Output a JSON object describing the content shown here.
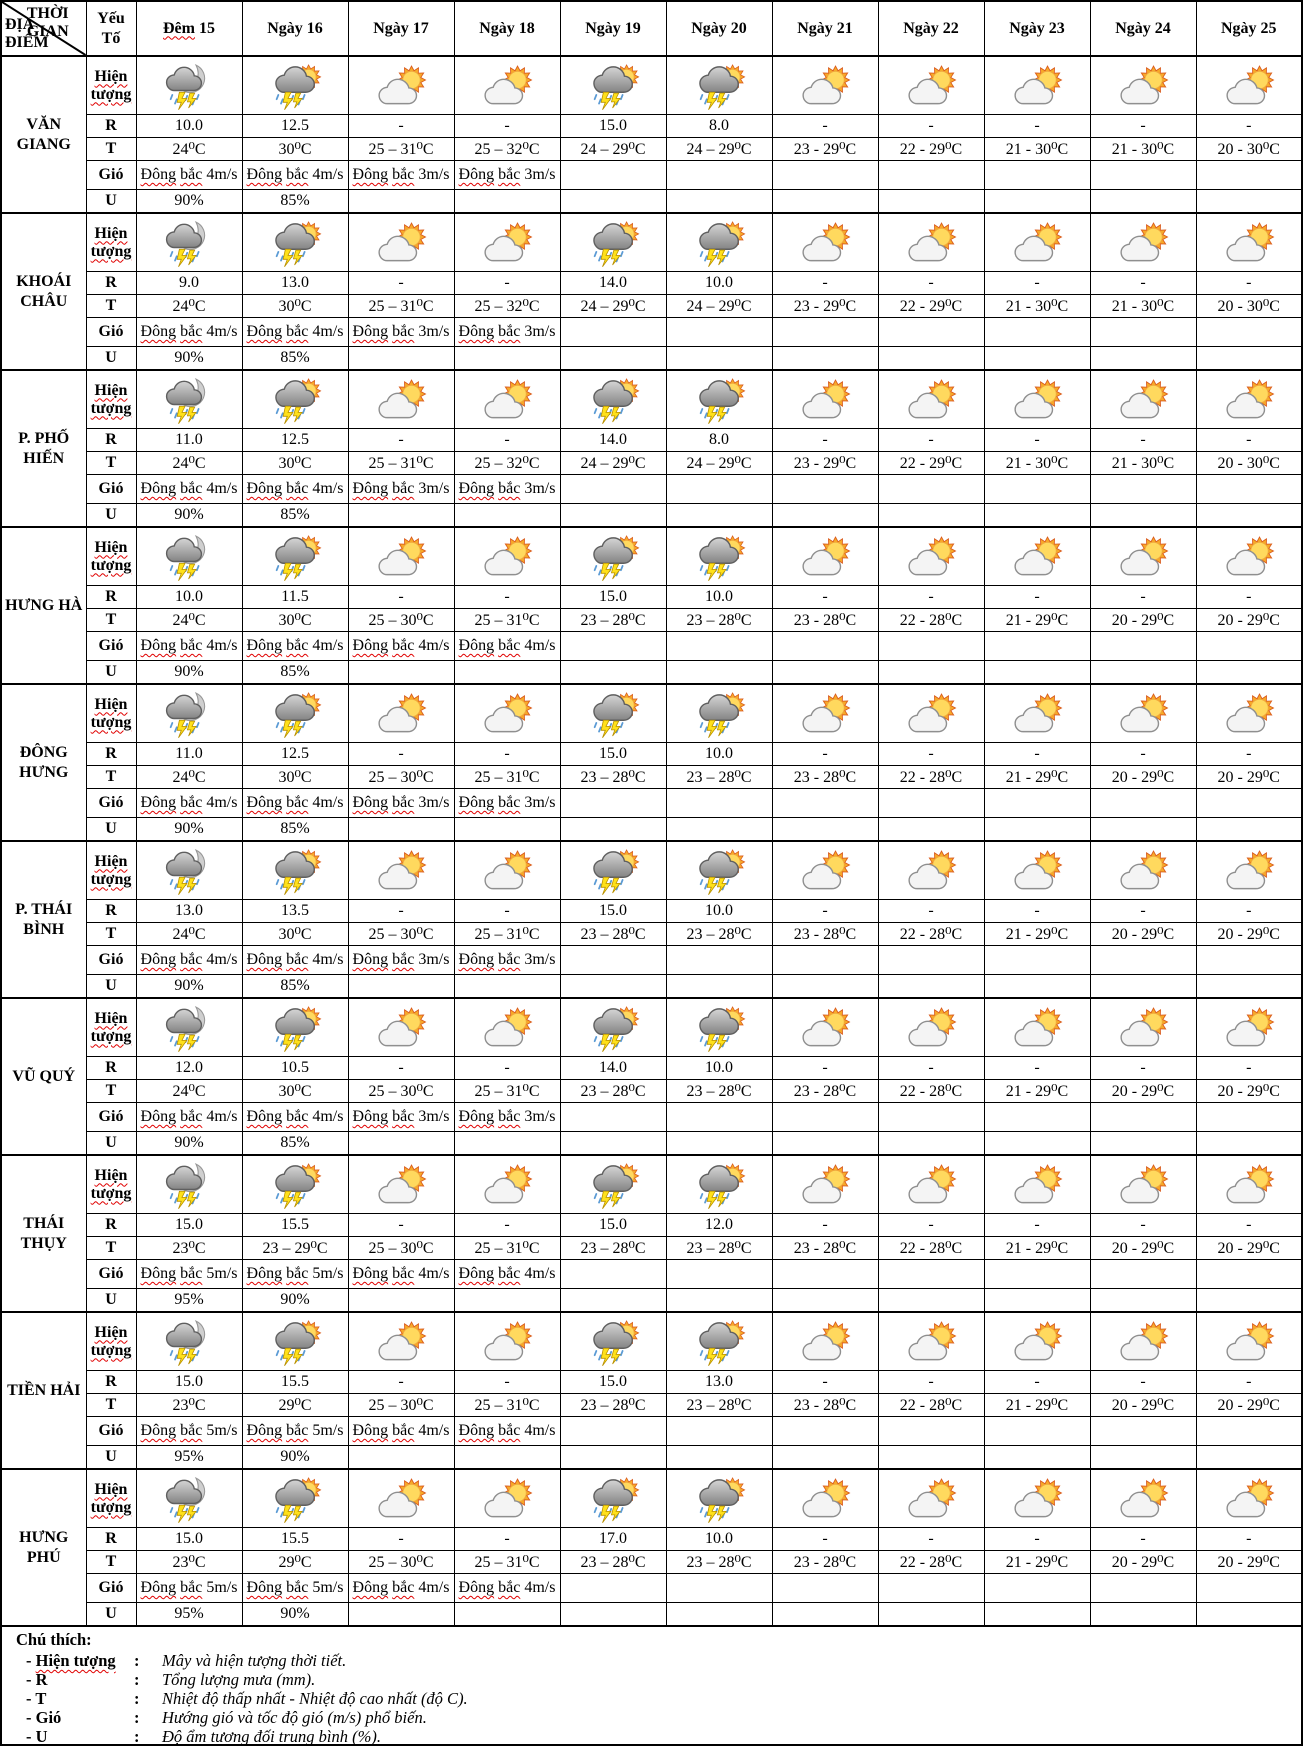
{
  "corner": {
    "top_label": "THỜI GIAN",
    "bottom_label": "ĐỊA ĐIỂM"
  },
  "factor_header": "Yếu Tố",
  "columns": [
    "Đêm 15",
    "Ngày 16",
    "Ngày 17",
    "Ngày 18",
    "Ngày 19",
    "Ngày 20",
    "Ngày 21",
    "Ngày 22",
    "Ngày 23",
    "Ngày 24",
    "Ngày 25"
  ],
  "row_labels": {
    "phenomenon": "Hiện tượng",
    "rain": "R",
    "temp": "T",
    "wind": "Gió",
    "humidity": "U"
  },
  "icons_by_column": [
    "night-storm",
    "day-storm",
    "partly-cloudy",
    "partly-cloudy",
    "day-storm",
    "day-storm",
    "partly-cloudy",
    "partly-cloudy",
    "partly-cloudy",
    "partly-cloudy",
    "partly-cloudy"
  ],
  "locations": [
    {
      "name": "VĂN GIANG",
      "rain": [
        "10.0",
        "12.5",
        "-",
        "-",
        "15.0",
        "8.0",
        "-",
        "-",
        "-",
        "-",
        "-"
      ],
      "temp": [
        "24⁰C",
        "30⁰C",
        "25 – 31⁰C",
        "25 – 32⁰C",
        "24 – 29⁰C",
        "24 – 29⁰C",
        "23 - 29⁰C",
        "22 - 29⁰C",
        "21 - 30⁰C",
        "21 - 30⁰C",
        "20 - 30⁰C"
      ],
      "wind": [
        "Đông bắc 4m/s",
        "Đông bắc 4m/s",
        "Đông bắc 3m/s",
        "Đông bắc 3m/s",
        "",
        "",
        "",
        "",
        "",
        "",
        ""
      ],
      "humidity": [
        "90%",
        "85%",
        "",
        "",
        "",
        "",
        "",
        "",
        "",
        "",
        ""
      ]
    },
    {
      "name": "KHOÁI CHÂU",
      "rain": [
        "9.0",
        "13.0",
        "-",
        "-",
        "14.0",
        "10.0",
        "-",
        "-",
        "-",
        "-",
        "-"
      ],
      "temp": [
        "24⁰C",
        "30⁰C",
        "25 – 31⁰C",
        "25 – 32⁰C",
        "24 – 29⁰C",
        "24 – 29⁰C",
        "23 - 29⁰C",
        "22 - 29⁰C",
        "21 - 30⁰C",
        "21 - 30⁰C",
        "20 - 30⁰C"
      ],
      "wind": [
        "Đông bắc 4m/s",
        "Đông bắc 4m/s",
        "Đông bắc 3m/s",
        "Đông bắc 3m/s",
        "",
        "",
        "",
        "",
        "",
        "",
        ""
      ],
      "humidity": [
        "90%",
        "85%",
        "",
        "",
        "",
        "",
        "",
        "",
        "",
        "",
        ""
      ]
    },
    {
      "name": "P. PHỐ HIẾN",
      "rain": [
        "11.0",
        "12.5",
        "-",
        "-",
        "14.0",
        "8.0",
        "-",
        "-",
        "-",
        "-",
        "-"
      ],
      "temp": [
        "24⁰C",
        "30⁰C",
        "25 – 31⁰C",
        "25 – 32⁰C",
        "24 – 29⁰C",
        "24 – 29⁰C",
        "23 - 29⁰C",
        "22 - 29⁰C",
        "21 - 30⁰C",
        "21 - 30⁰C",
        "20 - 30⁰C"
      ],
      "wind": [
        "Đông bắc 4m/s",
        "Đông bắc 4m/s",
        "Đông bắc 3m/s",
        "Đông bắc 3m/s",
        "",
        "",
        "",
        "",
        "",
        "",
        ""
      ],
      "humidity": [
        "90%",
        "85%",
        "",
        "",
        "",
        "",
        "",
        "",
        "",
        "",
        ""
      ]
    },
    {
      "name": "HƯNG HÀ",
      "rain": [
        "10.0",
        "11.5",
        "-",
        "-",
        "15.0",
        "10.0",
        "-",
        "-",
        "-",
        "-",
        "-"
      ],
      "temp": [
        "24⁰C",
        "30⁰C",
        "25 – 30⁰C",
        "25 – 31⁰C",
        "23 – 28⁰C",
        "23 – 28⁰C",
        "23 - 28⁰C",
        "22 - 28⁰C",
        "21 - 29⁰C",
        "20 - 29⁰C",
        "20 - 29⁰C"
      ],
      "wind": [
        "Đông bắc 4m/s",
        "Đông bắc 4m/s",
        "Đông bắc 4m/s",
        "Đông bắc 4m/s",
        "",
        "",
        "",
        "",
        "",
        "",
        ""
      ],
      "humidity": [
        "90%",
        "85%",
        "",
        "",
        "",
        "",
        "",
        "",
        "",
        "",
        ""
      ]
    },
    {
      "name": "ĐÔNG HƯNG",
      "rain": [
        "11.0",
        "12.5",
        "-",
        "-",
        "15.0",
        "10.0",
        "-",
        "-",
        "-",
        "-",
        "-"
      ],
      "temp": [
        "24⁰C",
        "30⁰C",
        "25 – 30⁰C",
        "25 – 31⁰C",
        "23 – 28⁰C",
        "23 – 28⁰C",
        "23 - 28⁰C",
        "22 - 28⁰C",
        "21 - 29⁰C",
        "20 - 29⁰C",
        "20 - 29⁰C"
      ],
      "wind": [
        "Đông bắc 4m/s",
        "Đông bắc 4m/s",
        "Đông bắc 3m/s",
        "Đông bắc 3m/s",
        "",
        "",
        "",
        "",
        "",
        "",
        ""
      ],
      "humidity": [
        "90%",
        "85%",
        "",
        "",
        "",
        "",
        "",
        "",
        "",
        "",
        ""
      ]
    },
    {
      "name": "P. THÁI BÌNH",
      "rain": [
        "13.0",
        "13.5",
        "-",
        "-",
        "15.0",
        "10.0",
        "-",
        "-",
        "-",
        "-",
        "-"
      ],
      "temp": [
        "24⁰C",
        "30⁰C",
        "25 – 30⁰C",
        "25 – 31⁰C",
        "23 – 28⁰C",
        "23 – 28⁰C",
        "23 - 28⁰C",
        "22 - 28⁰C",
        "21 - 29⁰C",
        "20 - 29⁰C",
        "20 - 29⁰C"
      ],
      "wind": [
        "Đông bắc 4m/s",
        "Đông bắc 4m/s",
        "Đông bắc 3m/s",
        "Đông bắc 3m/s",
        "",
        "",
        "",
        "",
        "",
        "",
        ""
      ],
      "humidity": [
        "90%",
        "85%",
        "",
        "",
        "",
        "",
        "",
        "",
        "",
        "",
        ""
      ]
    },
    {
      "name": "VŨ QUÝ",
      "rain": [
        "12.0",
        "10.5",
        "-",
        "-",
        "14.0",
        "10.0",
        "-",
        "-",
        "-",
        "-",
        "-"
      ],
      "temp": [
        "24⁰C",
        "30⁰C",
        "25 – 30⁰C",
        "25 – 31⁰C",
        "23 – 28⁰C",
        "23 – 28⁰C",
        "23 - 28⁰C",
        "22 - 28⁰C",
        "21 - 29⁰C",
        "20 - 29⁰C",
        "20 - 29⁰C"
      ],
      "wind": [
        "Đông bắc 4m/s",
        "Đông bắc 4m/s",
        "Đông bắc 3m/s",
        "Đông bắc 3m/s",
        "",
        "",
        "",
        "",
        "",
        "",
        ""
      ],
      "humidity": [
        "90%",
        "85%",
        "",
        "",
        "",
        "",
        "",
        "",
        "",
        "",
        ""
      ]
    },
    {
      "name": "THÁI THỤY",
      "rain": [
        "15.0",
        "15.5",
        "-",
        "-",
        "15.0",
        "12.0",
        "-",
        "-",
        "-",
        "-",
        "-"
      ],
      "temp": [
        "23⁰C",
        "23 – 29⁰C",
        "25 – 30⁰C",
        "25 – 31⁰C",
        "23 – 28⁰C",
        "23 – 28⁰C",
        "23 - 28⁰C",
        "22 - 28⁰C",
        "21 - 29⁰C",
        "20 - 29⁰C",
        "20 - 29⁰C"
      ],
      "wind": [
        "Đông bắc 5m/s",
        "Đông bắc 5m/s",
        "Đông bắc 4m/s",
        "Đông bắc 4m/s",
        "",
        "",
        "",
        "",
        "",
        "",
        ""
      ],
      "humidity": [
        "95%",
        "90%",
        "",
        "",
        "",
        "",
        "",
        "",
        "",
        "",
        ""
      ]
    },
    {
      "name": "TIỀN HẢI",
      "rain": [
        "15.0",
        "15.5",
        "-",
        "-",
        "15.0",
        "13.0",
        "-",
        "-",
        "-",
        "-",
        "-"
      ],
      "temp": [
        "23⁰C",
        "29⁰C",
        "25 – 30⁰C",
        "25 – 31⁰C",
        "23 – 28⁰C",
        "23 – 28⁰C",
        "23 - 28⁰C",
        "22 - 28⁰C",
        "21 - 29⁰C",
        "20 - 29⁰C",
        "20 - 29⁰C"
      ],
      "wind": [
        "Đông bắc 5m/s",
        "Đông bắc 5m/s",
        "Đông bắc 4m/s",
        "Đông bắc 4m/s",
        "",
        "",
        "",
        "",
        "",
        "",
        ""
      ],
      "humidity": [
        "95%",
        "90%",
        "",
        "",
        "",
        "",
        "",
        "",
        "",
        "",
        ""
      ]
    },
    {
      "name": "HƯNG PHÚ",
      "rain": [
        "15.0",
        "15.5",
        "-",
        "-",
        "17.0",
        "10.0",
        "-",
        "-",
        "-",
        "-",
        "-"
      ],
      "temp": [
        "23⁰C",
        "29⁰C",
        "25 – 30⁰C",
        "25 – 31⁰C",
        "23 – 28⁰C",
        "23 – 28⁰C",
        "23 - 28⁰C",
        "22 - 28⁰C",
        "21 - 29⁰C",
        "20 - 29⁰C",
        "20 - 29⁰C"
      ],
      "wind": [
        "Đông bắc 5m/s",
        "Đông bắc 5m/s",
        "Đông bắc 4m/s",
        "Đông bắc 4m/s",
        "",
        "",
        "",
        "",
        "",
        "",
        ""
      ],
      "humidity": [
        "95%",
        "90%",
        "",
        "",
        "",
        "",
        "",
        "",
        "",
        "",
        ""
      ]
    }
  ],
  "legend": {
    "title": "Chú thích:",
    "bullet": "-",
    "colon": ":",
    "items": [
      {
        "label": "Hiện tượng",
        "desc": "Mây và hiện tượng thời tiết."
      },
      {
        "label": "R",
        "desc": "Tổng lượng mưa (mm)."
      },
      {
        "label": "T",
        "desc": "Nhiệt độ thấp nhất - Nhiệt độ cao nhất (độ C)."
      },
      {
        "label": "Gió",
        "desc": "Hướng gió và tốc độ gió (m/s) phổ biến."
      },
      {
        "label": "U",
        "desc": "Độ ẩm tương đối trung bình (%)."
      }
    ]
  },
  "colors": {
    "border": "#000000",
    "misspell_underline": "#e00000",
    "sun_rays": "#F7A928",
    "sun_core": "#FFD95E",
    "cloud_light": "#F4F4F4",
    "cloud_dark": "#9B9B9B",
    "lightning": "#FFE11A",
    "rain_drop": "#5B9BD5",
    "text": "#000000",
    "background": "#FFFFFF"
  }
}
